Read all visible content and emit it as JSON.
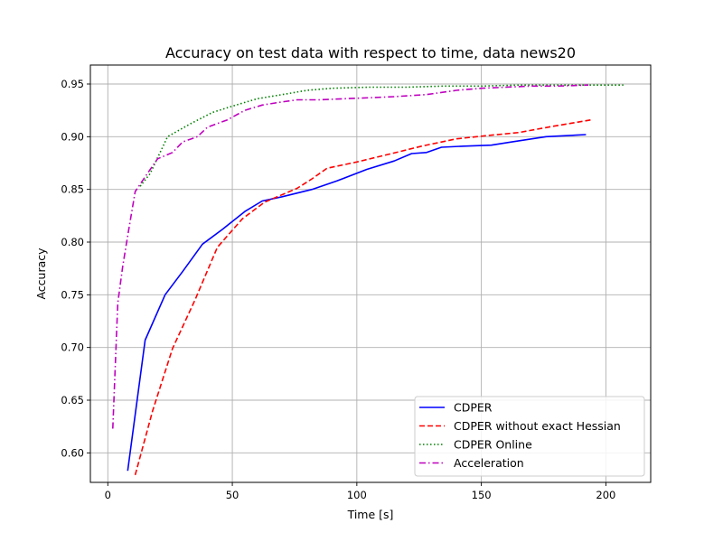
{
  "chart_data": {
    "type": "line",
    "title": "Accuracy on test data with respect to time, data news20",
    "xlabel": "Time [s]",
    "ylabel": "Accuracy",
    "xlim": [
      -7,
      218
    ],
    "ylim": [
      0.572,
      0.968
    ],
    "x_ticks": [
      0,
      50,
      100,
      150,
      200
    ],
    "y_ticks": [
      0.6,
      0.65,
      0.7,
      0.75,
      0.8,
      0.85,
      0.9,
      0.95
    ],
    "x_tick_labels": [
      "0",
      "50",
      "100",
      "150",
      "200"
    ],
    "y_tick_labels": [
      "0.60",
      "0.65",
      "0.70",
      "0.75",
      "0.80",
      "0.85",
      "0.90",
      "0.95"
    ],
    "grid": true,
    "legend_position": "lower right",
    "series": [
      {
        "name": "CDPER",
        "color": "#0000ff",
        "dash": "solid",
        "points": [
          [
            8,
            0.583
          ],
          [
            15,
            0.707
          ],
          [
            23,
            0.75
          ],
          [
            30,
            0.772
          ],
          [
            38,
            0.798
          ],
          [
            46,
            0.812
          ],
          [
            55,
            0.829
          ],
          [
            62,
            0.839
          ],
          [
            70,
            0.843
          ],
          [
            82,
            0.85
          ],
          [
            92,
            0.858
          ],
          [
            104,
            0.869
          ],
          [
            115,
            0.877
          ],
          [
            122,
            0.884
          ],
          [
            128,
            0.885
          ],
          [
            134,
            0.89
          ],
          [
            143,
            0.891
          ],
          [
            154,
            0.892
          ],
          [
            162,
            0.895
          ],
          [
            176,
            0.9
          ],
          [
            192,
            0.902
          ]
        ]
      },
      {
        "name": "CDPER without exact Hessian",
        "color": "#ff0000",
        "dash": "dashed",
        "points": [
          [
            11,
            0.579
          ],
          [
            18,
            0.64
          ],
          [
            26,
            0.699
          ],
          [
            35,
            0.745
          ],
          [
            44,
            0.795
          ],
          [
            54,
            0.822
          ],
          [
            63,
            0.838
          ],
          [
            76,
            0.851
          ],
          [
            82,
            0.86
          ],
          [
            88,
            0.87
          ],
          [
            100,
            0.876
          ],
          [
            114,
            0.884
          ],
          [
            126,
            0.891
          ],
          [
            140,
            0.898
          ],
          [
            152,
            0.901
          ],
          [
            165,
            0.904
          ],
          [
            179,
            0.91
          ],
          [
            194,
            0.916
          ]
        ]
      },
      {
        "name": "CDPER Online",
        "color": "#008000",
        "dash": "dotted",
        "points": [
          [
            13,
            0.853
          ],
          [
            17,
            0.865
          ],
          [
            24,
            0.9
          ],
          [
            33,
            0.912
          ],
          [
            42,
            0.923
          ],
          [
            50,
            0.929
          ],
          [
            60,
            0.936
          ],
          [
            70,
            0.94
          ],
          [
            80,
            0.944
          ],
          [
            90,
            0.946
          ],
          [
            105,
            0.947
          ],
          [
            120,
            0.947
          ],
          [
            135,
            0.948
          ],
          [
            150,
            0.948
          ],
          [
            165,
            0.949
          ],
          [
            180,
            0.949
          ],
          [
            195,
            0.949
          ],
          [
            207,
            0.949
          ]
        ]
      },
      {
        "name": "Acceleration",
        "color": "#bf00bf",
        "dash": "dashdot",
        "points": [
          [
            2,
            0.623
          ],
          [
            4,
            0.742
          ],
          [
            6,
            0.777
          ],
          [
            8,
            0.806
          ],
          [
            11,
            0.848
          ],
          [
            15,
            0.862
          ],
          [
            20,
            0.879
          ],
          [
            26,
            0.885
          ],
          [
            30,
            0.895
          ],
          [
            36,
            0.9
          ],
          [
            40,
            0.909
          ],
          [
            48,
            0.916
          ],
          [
            55,
            0.925
          ],
          [
            62,
            0.93
          ],
          [
            70,
            0.933
          ],
          [
            76,
            0.935
          ],
          [
            85,
            0.935
          ],
          [
            95,
            0.936
          ],
          [
            105,
            0.937
          ],
          [
            115,
            0.938
          ],
          [
            128,
            0.94
          ],
          [
            140,
            0.944
          ],
          [
            150,
            0.946
          ],
          [
            160,
            0.947
          ],
          [
            170,
            0.948
          ],
          [
            180,
            0.948
          ],
          [
            193,
            0.949
          ]
        ]
      }
    ]
  }
}
